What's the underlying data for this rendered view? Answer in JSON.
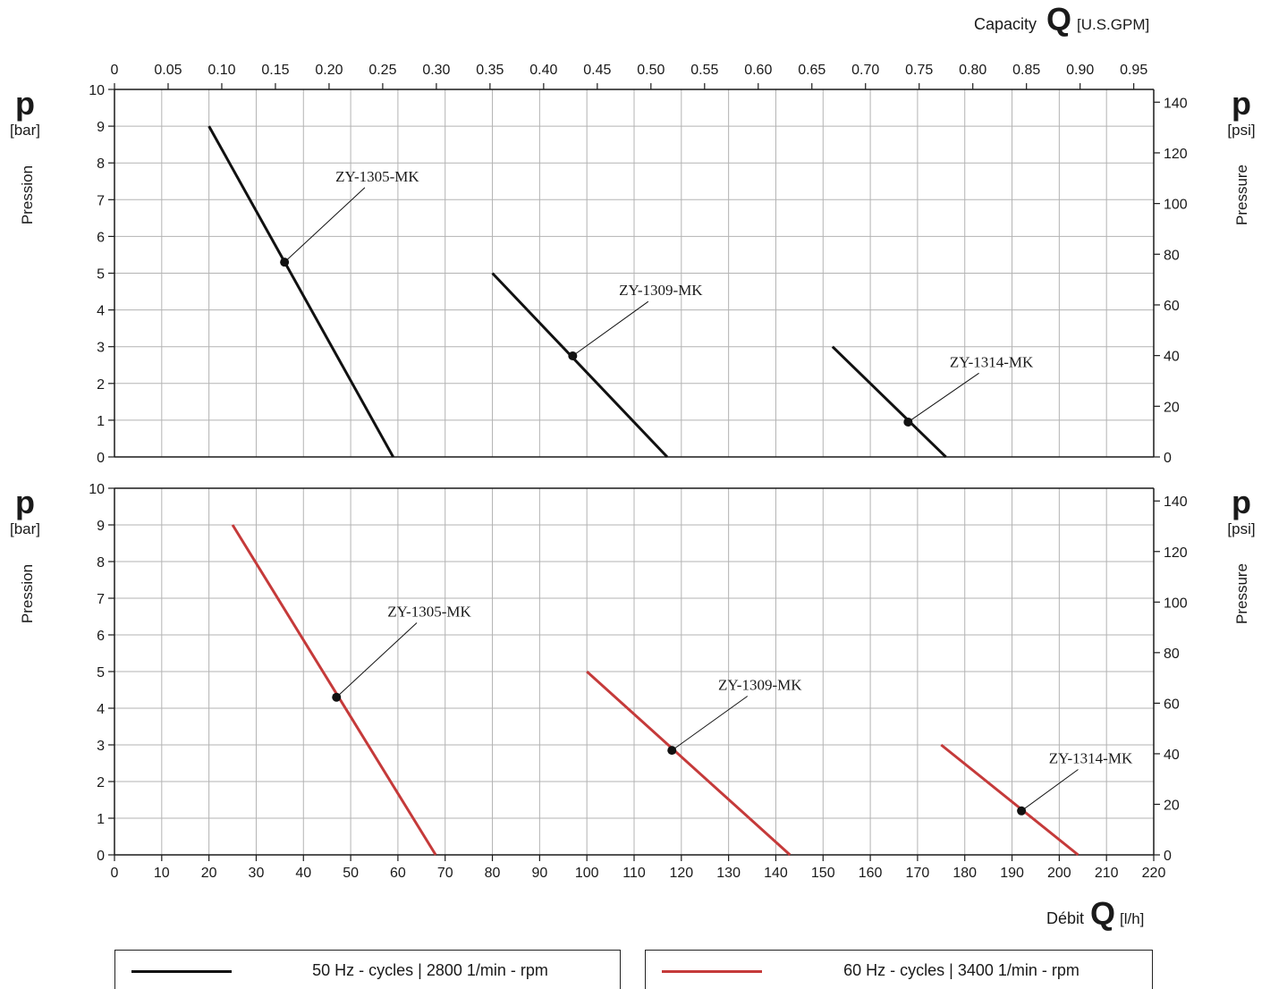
{
  "capacity": {
    "label": "Capacity",
    "symbol": "Q",
    "unit": "[U.S.GPM]"
  },
  "flow": {
    "label": "Débit",
    "symbol": "Q",
    "unit": "[l/h]"
  },
  "p_symbol": "p",
  "left_axis": {
    "unit": "[bar]",
    "title": "Pression"
  },
  "right_axis": {
    "unit": "[psi]",
    "title": "Pressure"
  },
  "colors": {
    "hz50": "#111111",
    "hz60": "#c53a3a",
    "grid": "#b3b3b3",
    "axis": "#1a1a1a"
  },
  "legend": [
    {
      "text": "50 Hz - cycles | 2800 1/min - rpm",
      "color": "#111111"
    },
    {
      "text": "60 Hz - cycles | 3400 1/min - rpm",
      "color": "#c53a3a"
    }
  ],
  "chart_data": [
    {
      "type": "line",
      "x_axis_lh": {
        "ticks": [
          0,
          10,
          20,
          30,
          40,
          50,
          60,
          70,
          80,
          90,
          100,
          110,
          120,
          130,
          140,
          150,
          160,
          170,
          180,
          190,
          200,
          210,
          220
        ],
        "range": [
          0,
          220
        ],
        "position": "bottom"
      },
      "x_axis_gpm": {
        "ticks": [
          "0",
          "0.05",
          "0.10",
          "0.15",
          "0.20",
          "0.25",
          "0.30",
          "0.35",
          "0.40",
          "0.45",
          "0.50",
          "0.55",
          "0.60",
          "0.65",
          "0.70",
          "0.75",
          "0.80",
          "0.85",
          "0.90",
          "0.95"
        ],
        "position": "top"
      },
      "y_axis_bar": {
        "ticks": [
          0,
          1,
          2,
          3,
          4,
          5,
          6,
          7,
          8,
          9,
          10
        ],
        "range": [
          0,
          10
        ]
      },
      "y_axis_psi": {
        "ticks": [
          0,
          20,
          40,
          60,
          80,
          100,
          120,
          140
        ]
      },
      "grid": true,
      "series": [
        {
          "name": "ZY-1305-MK",
          "color": "#111111",
          "points": [
            [
              20,
              9
            ],
            [
              59,
              0
            ]
          ],
          "marker": [
            36,
            5.3
          ],
          "label_at": [
            53,
            7.5
          ]
        },
        {
          "name": "ZY-1309-MK",
          "color": "#111111",
          "points": [
            [
              80,
              5
            ],
            [
              117,
              0
            ]
          ],
          "marker": [
            97,
            2.75
          ],
          "label_at": [
            113,
            4.4
          ]
        },
        {
          "name": "ZY-1314-MK",
          "color": "#111111",
          "points": [
            [
              152,
              3
            ],
            [
              176,
              0
            ]
          ],
          "marker": [
            168,
            0.95
          ],
          "label_at": [
            183,
            2.45
          ]
        }
      ]
    },
    {
      "type": "line",
      "x_axis_lh": {
        "ticks": [
          0,
          10,
          20,
          30,
          40,
          50,
          60,
          70,
          80,
          90,
          100,
          110,
          120,
          130,
          140,
          150,
          160,
          170,
          180,
          190,
          200,
          210,
          220
        ],
        "range": [
          0,
          220
        ],
        "position": "bottom"
      },
      "y_axis_bar": {
        "ticks": [
          0,
          1,
          2,
          3,
          4,
          5,
          6,
          7,
          8,
          9,
          10
        ],
        "range": [
          0,
          10
        ]
      },
      "y_axis_psi": {
        "ticks": [
          0,
          20,
          40,
          60,
          80,
          100,
          120,
          140
        ]
      },
      "grid": true,
      "series": [
        {
          "name": "ZY-1305-MK",
          "color": "#c53a3a",
          "points": [
            [
              25,
              9
            ],
            [
              68,
              0
            ]
          ],
          "marker": [
            47,
            4.3
          ],
          "label_at": [
            64,
            6.5
          ]
        },
        {
          "name": "ZY-1309-MK",
          "color": "#c53a3a",
          "points": [
            [
              100,
              5
            ],
            [
              143,
              0
            ]
          ],
          "marker": [
            118,
            2.85
          ],
          "label_at": [
            134,
            4.5
          ]
        },
        {
          "name": "ZY-1314-MK",
          "color": "#c53a3a",
          "points": [
            [
              175,
              3
            ],
            [
              204,
              0
            ]
          ],
          "marker": [
            192,
            1.2
          ],
          "label_at": [
            204,
            2.5
          ]
        }
      ]
    }
  ]
}
